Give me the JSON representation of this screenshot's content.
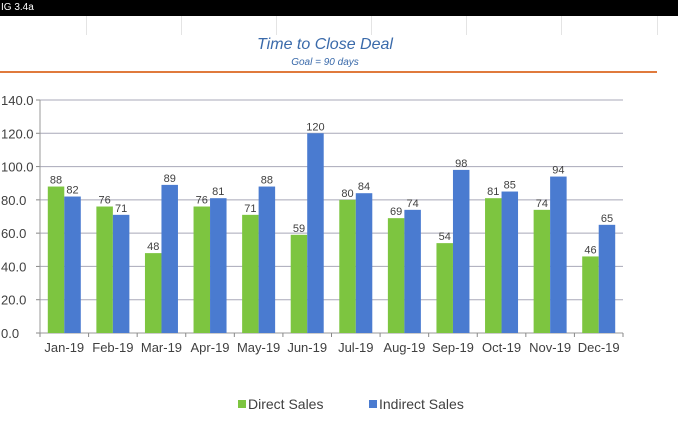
{
  "header": {
    "figure_label": "IG 3.4a"
  },
  "chart_data": {
    "type": "bar",
    "title": "Time to Close Deal",
    "subtitle": "Goal = 90 days",
    "xlabel": "",
    "ylabel": "",
    "ylim": [
      0,
      140
    ],
    "yticks": [
      "0.0",
      "20.0",
      "40.0",
      "60.0",
      "80.0",
      "100.0",
      "120.0",
      "140.0"
    ],
    "grid": true,
    "legend_position": "bottom",
    "categories": [
      "Jan-19",
      "Feb-19",
      "Mar-19",
      "Apr-19",
      "May-19",
      "Jun-19",
      "Jul-19",
      "Aug-19",
      "Sep-19",
      "Oct-19",
      "Nov-19",
      "Dec-19"
    ],
    "series": [
      {
        "name": "Direct Sales",
        "color": "#7dc540",
        "values": [
          88,
          76,
          48,
          76,
          71,
          59,
          80,
          69,
          54,
          81,
          74,
          46
        ]
      },
      {
        "name": "Indirect Sales",
        "color": "#4a7bd0",
        "values": [
          82,
          71,
          89,
          81,
          88,
          120,
          84,
          74,
          98,
          85,
          94,
          65
        ]
      }
    ],
    "data_labels": true
  },
  "colors": {
    "title": "#3a6aaa",
    "rule": "#e07a3c",
    "gridline": "#a8a8b8",
    "axis_text": "#404040"
  }
}
